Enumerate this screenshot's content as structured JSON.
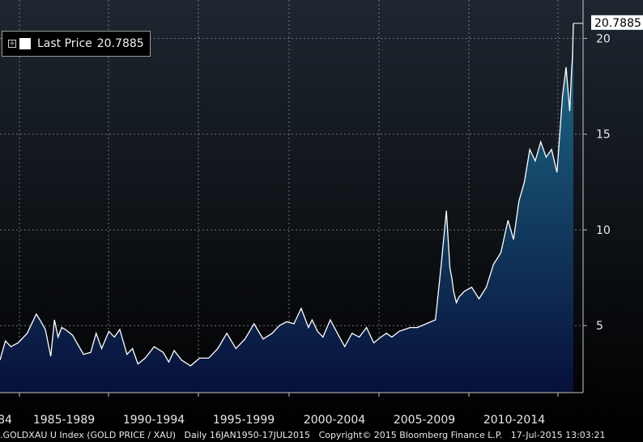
{
  "legend": {
    "series_label": "Last Price",
    "series_value": "20.7885"
  },
  "last_value_tag": "20.7885",
  "footer": {
    "ticker": ".GOLDXAU U Index (GOLD PRICE / XAU)",
    "period": "Daily 16JAN1950-17JUL2015",
    "copyright": "Copyright© 2015 Bloomberg Finance L.P.",
    "timestamp": "17-Jul-2015 13:03:21"
  },
  "colors": {
    "background_top": "#1e2630",
    "background_bottom": "#000000",
    "line": "#ffffff",
    "fill_top": "#1f6f8b",
    "fill_bottom": "#07103a",
    "grid": "#8a8a8a"
  },
  "chart_data": {
    "type": "area",
    "grid": true,
    "legend_placement": "top-left",
    "x_tick_labels": [
      "84",
      "1985-1989",
      "1990-1994",
      "1995-1999",
      "2000-2004",
      "2005-2009",
      "2010-2014"
    ],
    "x_range": [
      1984.0,
      2015.6
    ],
    "y_ticks": [
      5,
      10,
      15,
      20
    ],
    "ylim": [
      1.5,
      21.5
    ],
    "x": [
      1984.0,
      1984.3,
      1984.6,
      1985.0,
      1985.5,
      1986.0,
      1986.2,
      1986.5,
      1986.8,
      1987.0,
      1987.2,
      1987.4,
      1987.6,
      1988.0,
      1988.3,
      1988.6,
      1989.0,
      1989.3,
      1989.6,
      1990.0,
      1990.3,
      1990.6,
      1991.0,
      1991.3,
      1991.6,
      1992.0,
      1992.5,
      1993.0,
      1993.3,
      1993.6,
      1994.0,
      1994.5,
      1995.0,
      1995.5,
      1996.0,
      1996.5,
      1997.0,
      1997.5,
      1998.0,
      1998.5,
      1999.0,
      1999.4,
      1999.8,
      2000.2,
      2000.6,
      2001.0,
      2001.2,
      2001.5,
      2001.8,
      2002.2,
      2002.6,
      2003.0,
      2003.4,
      2003.8,
      2004.2,
      2004.6,
      2005.0,
      2005.3,
      2005.6,
      2006.0,
      2006.3,
      2006.6,
      2007.0,
      2007.5,
      2008.0,
      2008.3,
      2008.6,
      2008.8,
      2008.9,
      2009.0,
      2009.15,
      2009.3,
      2009.6,
      2010.0,
      2010.4,
      2010.8,
      2011.2,
      2011.6,
      2012.0,
      2012.3,
      2012.6,
      2012.9,
      2013.2,
      2013.5,
      2013.8,
      2014.1,
      2014.4,
      2014.7,
      2015.0,
      2015.2,
      2015.4,
      2015.5,
      2015.55,
      2015.6
    ],
    "y": [
      3.2,
      4.2,
      3.9,
      4.1,
      4.6,
      5.6,
      5.3,
      4.8,
      3.4,
      5.3,
      4.4,
      4.9,
      4.8,
      4.5,
      4.0,
      3.5,
      3.6,
      4.6,
      3.8,
      4.7,
      4.4,
      4.8,
      3.5,
      3.8,
      3.0,
      3.3,
      3.9,
      3.6,
      3.1,
      3.7,
      3.2,
      2.9,
      3.3,
      3.3,
      3.8,
      4.6,
      3.8,
      4.3,
      5.1,
      4.3,
      4.6,
      5.0,
      5.2,
      5.1,
      5.9,
      4.9,
      5.3,
      4.7,
      4.4,
      5.3,
      4.6,
      3.9,
      4.6,
      4.4,
      4.9,
      4.1,
      4.4,
      4.6,
      4.4,
      4.7,
      4.8,
      4.9,
      4.9,
      5.1,
      5.3,
      8.0,
      11.0,
      8.0,
      7.5,
      6.8,
      6.2,
      6.5,
      6.8,
      7.0,
      6.4,
      7.0,
      8.2,
      8.8,
      10.5,
      9.5,
      11.5,
      12.5,
      14.2,
      13.6,
      14.6,
      13.8,
      14.2,
      13.0,
      17.0,
      18.5,
      16.2,
      18.3,
      19.0,
      20.7885
    ]
  }
}
